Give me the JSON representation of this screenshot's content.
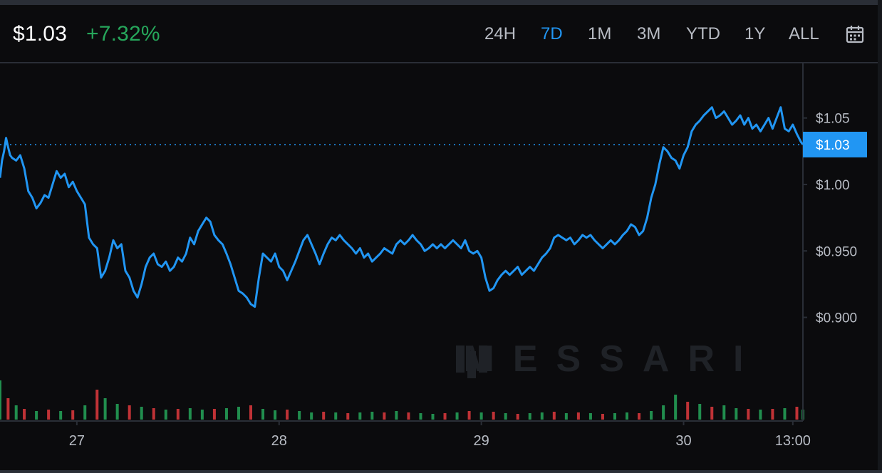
{
  "header": {
    "price": "$1.03",
    "change": "+7.32%",
    "ranges": [
      "24H",
      "7D",
      "1M",
      "3M",
      "YTD",
      "1Y",
      "ALL"
    ],
    "active_range": "7D",
    "calendar_icon": "calendar-icon"
  },
  "watermark": "MESSARI",
  "colors": {
    "background": "#0b0b0d",
    "line": "#2196f3",
    "positive": "#26a65b",
    "negative": "#e0393e",
    "text": "#b8bcc4",
    "grid": "#2a2e36"
  },
  "chart_data": {
    "type": "line",
    "x_tick_labels": [
      "27",
      "28",
      "29",
      "30",
      "13:00"
    ],
    "x_tick_positions_days": [
      1,
      2,
      3,
      4,
      4.54
    ],
    "y_tick_labels": [
      "$1.05",
      "$1.00",
      "$0.950",
      "$0.900"
    ],
    "y_tick_values": [
      1.05,
      1.0,
      0.95,
      0.9
    ],
    "ylim": [
      0.866,
      1.09
    ],
    "xlim_days": [
      0.62,
      4.59
    ],
    "current_price_label": "$1.03",
    "current_price": 1.03,
    "series": [
      {
        "points": [
          [
            0.62,
            1.005
          ],
          [
            0.63,
            1.018
          ],
          [
            0.64,
            1.025
          ],
          [
            0.65,
            1.035
          ],
          [
            0.66,
            1.028
          ],
          [
            0.67,
            1.022
          ],
          [
            0.68,
            1.02
          ],
          [
            0.7,
            1.018
          ],
          [
            0.72,
            1.022
          ],
          [
            0.74,
            1.012
          ],
          [
            0.76,
            0.995
          ],
          [
            0.78,
            0.99
          ],
          [
            0.8,
            0.982
          ],
          [
            0.82,
            0.986
          ],
          [
            0.84,
            0.992
          ],
          [
            0.86,
            0.99
          ],
          [
            0.88,
            1.0
          ],
          [
            0.9,
            1.01
          ],
          [
            0.92,
            1.005
          ],
          [
            0.94,
            1.008
          ],
          [
            0.96,
            0.998
          ],
          [
            0.98,
            1.002
          ],
          [
            1.0,
            0.995
          ],
          [
            1.02,
            0.99
          ],
          [
            1.04,
            0.985
          ],
          [
            1.06,
            0.96
          ],
          [
            1.08,
            0.955
          ],
          [
            1.1,
            0.952
          ],
          [
            1.12,
            0.93
          ],
          [
            1.14,
            0.935
          ],
          [
            1.16,
            0.945
          ],
          [
            1.18,
            0.958
          ],
          [
            1.2,
            0.952
          ],
          [
            1.22,
            0.955
          ],
          [
            1.24,
            0.935
          ],
          [
            1.26,
            0.93
          ],
          [
            1.28,
            0.92
          ],
          [
            1.3,
            0.915
          ],
          [
            1.32,
            0.925
          ],
          [
            1.34,
            0.938
          ],
          [
            1.36,
            0.945
          ],
          [
            1.38,
            0.948
          ],
          [
            1.4,
            0.94
          ],
          [
            1.42,
            0.938
          ],
          [
            1.44,
            0.942
          ],
          [
            1.46,
            0.935
          ],
          [
            1.48,
            0.938
          ],
          [
            1.5,
            0.945
          ],
          [
            1.52,
            0.942
          ],
          [
            1.54,
            0.948
          ],
          [
            1.56,
            0.96
          ],
          [
            1.58,
            0.955
          ],
          [
            1.6,
            0.965
          ],
          [
            1.62,
            0.97
          ],
          [
            1.64,
            0.975
          ],
          [
            1.66,
            0.972
          ],
          [
            1.68,
            0.962
          ],
          [
            1.7,
            0.958
          ],
          [
            1.72,
            0.955
          ],
          [
            1.74,
            0.948
          ],
          [
            1.76,
            0.94
          ],
          [
            1.78,
            0.93
          ],
          [
            1.8,
            0.92
          ],
          [
            1.82,
            0.918
          ],
          [
            1.84,
            0.915
          ],
          [
            1.86,
            0.91
          ],
          [
            1.88,
            0.908
          ],
          [
            1.9,
            0.93
          ],
          [
            1.92,
            0.948
          ],
          [
            1.94,
            0.945
          ],
          [
            1.96,
            0.942
          ],
          [
            1.98,
            0.948
          ],
          [
            2.0,
            0.938
          ],
          [
            2.02,
            0.935
          ],
          [
            2.04,
            0.928
          ],
          [
            2.06,
            0.935
          ],
          [
            2.08,
            0.942
          ],
          [
            2.1,
            0.95
          ],
          [
            2.12,
            0.958
          ],
          [
            2.14,
            0.962
          ],
          [
            2.16,
            0.955
          ],
          [
            2.18,
            0.948
          ],
          [
            2.2,
            0.94
          ],
          [
            2.22,
            0.948
          ],
          [
            2.24,
            0.955
          ],
          [
            2.26,
            0.96
          ],
          [
            2.28,
            0.958
          ],
          [
            2.3,
            0.962
          ],
          [
            2.32,
            0.958
          ],
          [
            2.34,
            0.955
          ],
          [
            2.36,
            0.952
          ],
          [
            2.38,
            0.948
          ],
          [
            2.4,
            0.952
          ],
          [
            2.42,
            0.945
          ],
          [
            2.44,
            0.948
          ],
          [
            2.46,
            0.942
          ],
          [
            2.48,
            0.945
          ],
          [
            2.5,
            0.948
          ],
          [
            2.52,
            0.952
          ],
          [
            2.54,
            0.95
          ],
          [
            2.56,
            0.948
          ],
          [
            2.58,
            0.955
          ],
          [
            2.6,
            0.958
          ],
          [
            2.62,
            0.955
          ],
          [
            2.64,
            0.958
          ],
          [
            2.66,
            0.962
          ],
          [
            2.68,
            0.958
          ],
          [
            2.7,
            0.955
          ],
          [
            2.72,
            0.95
          ],
          [
            2.74,
            0.952
          ],
          [
            2.76,
            0.955
          ],
          [
            2.78,
            0.952
          ],
          [
            2.8,
            0.955
          ],
          [
            2.82,
            0.952
          ],
          [
            2.84,
            0.955
          ],
          [
            2.86,
            0.958
          ],
          [
            2.88,
            0.955
          ],
          [
            2.9,
            0.952
          ],
          [
            2.92,
            0.958
          ],
          [
            2.94,
            0.95
          ],
          [
            2.96,
            0.948
          ],
          [
            2.98,
            0.95
          ],
          [
            3.0,
            0.945
          ],
          [
            3.02,
            0.93
          ],
          [
            3.04,
            0.92
          ],
          [
            3.06,
            0.922
          ],
          [
            3.08,
            0.928
          ],
          [
            3.1,
            0.932
          ],
          [
            3.12,
            0.935
          ],
          [
            3.14,
            0.932
          ],
          [
            3.16,
            0.935
          ],
          [
            3.18,
            0.938
          ],
          [
            3.2,
            0.932
          ],
          [
            3.22,
            0.935
          ],
          [
            3.24,
            0.938
          ],
          [
            3.26,
            0.935
          ],
          [
            3.28,
            0.94
          ],
          [
            3.3,
            0.945
          ],
          [
            3.32,
            0.948
          ],
          [
            3.34,
            0.952
          ],
          [
            3.36,
            0.96
          ],
          [
            3.38,
            0.962
          ],
          [
            3.4,
            0.96
          ],
          [
            3.42,
            0.958
          ],
          [
            3.44,
            0.96
          ],
          [
            3.46,
            0.955
          ],
          [
            3.48,
            0.958
          ],
          [
            3.5,
            0.962
          ],
          [
            3.52,
            0.96
          ],
          [
            3.54,
            0.962
          ],
          [
            3.56,
            0.958
          ],
          [
            3.58,
            0.955
          ],
          [
            3.6,
            0.952
          ],
          [
            3.62,
            0.955
          ],
          [
            3.64,
            0.958
          ],
          [
            3.66,
            0.955
          ],
          [
            3.68,
            0.958
          ],
          [
            3.7,
            0.962
          ],
          [
            3.72,
            0.965
          ],
          [
            3.74,
            0.97
          ],
          [
            3.76,
            0.968
          ],
          [
            3.78,
            0.962
          ],
          [
            3.8,
            0.965
          ],
          [
            3.82,
            0.975
          ],
          [
            3.84,
            0.99
          ],
          [
            3.86,
            1.0
          ],
          [
            3.88,
            1.015
          ],
          [
            3.9,
            1.028
          ],
          [
            3.92,
            1.025
          ],
          [
            3.94,
            1.02
          ],
          [
            3.96,
            1.018
          ],
          [
            3.98,
            1.012
          ],
          [
            4.0,
            1.022
          ],
          [
            4.02,
            1.028
          ],
          [
            4.04,
            1.04
          ],
          [
            4.06,
            1.045
          ],
          [
            4.08,
            1.048
          ],
          [
            4.1,
            1.052
          ],
          [
            4.12,
            1.055
          ],
          [
            4.14,
            1.058
          ],
          [
            4.16,
            1.05
          ],
          [
            4.18,
            1.052
          ],
          [
            4.2,
            1.055
          ],
          [
            4.22,
            1.05
          ],
          [
            4.24,
            1.045
          ],
          [
            4.26,
            1.048
          ],
          [
            4.28,
            1.052
          ],
          [
            4.3,
            1.045
          ],
          [
            4.32,
            1.05
          ],
          [
            4.34,
            1.042
          ],
          [
            4.36,
            1.045
          ],
          [
            4.38,
            1.04
          ],
          [
            4.4,
            1.045
          ],
          [
            4.42,
            1.05
          ],
          [
            4.44,
            1.042
          ],
          [
            4.46,
            1.05
          ],
          [
            4.48,
            1.058
          ],
          [
            4.5,
            1.042
          ],
          [
            4.52,
            1.04
          ],
          [
            4.54,
            1.045
          ],
          [
            4.56,
            1.038
          ],
          [
            4.58,
            1.032
          ],
          [
            4.59,
            1.03
          ]
        ]
      }
    ],
    "volume": {
      "positive_color": "#26a65b",
      "negative_color": "#e0393e",
      "bars": [
        [
          0.62,
          0.55,
          1
        ],
        [
          0.66,
          0.3,
          -1
        ],
        [
          0.7,
          0.2,
          1
        ],
        [
          0.74,
          0.15,
          -1
        ],
        [
          0.8,
          0.12,
          1
        ],
        [
          0.86,
          0.14,
          -1
        ],
        [
          0.92,
          0.12,
          1
        ],
        [
          0.98,
          0.13,
          -1
        ],
        [
          1.04,
          0.2,
          1
        ],
        [
          1.1,
          0.42,
          -1
        ],
        [
          1.14,
          0.3,
          1
        ],
        [
          1.2,
          0.22,
          1
        ],
        [
          1.26,
          0.2,
          -1
        ],
        [
          1.32,
          0.18,
          1
        ],
        [
          1.38,
          0.16,
          -1
        ],
        [
          1.44,
          0.14,
          1
        ],
        [
          1.5,
          0.15,
          -1
        ],
        [
          1.56,
          0.16,
          1
        ],
        [
          1.62,
          0.14,
          1
        ],
        [
          1.68,
          0.15,
          -1
        ],
        [
          1.74,
          0.16,
          1
        ],
        [
          1.8,
          0.18,
          1
        ],
        [
          1.86,
          0.2,
          -1
        ],
        [
          1.92,
          0.15,
          1
        ],
        [
          1.98,
          0.13,
          1
        ],
        [
          2.04,
          0.14,
          -1
        ],
        [
          2.1,
          0.12,
          1
        ],
        [
          2.16,
          0.1,
          1
        ],
        [
          2.22,
          0.11,
          -1
        ],
        [
          2.28,
          0.1,
          1
        ],
        [
          2.34,
          0.09,
          -1
        ],
        [
          2.4,
          0.1,
          1
        ],
        [
          2.46,
          0.11,
          1
        ],
        [
          2.52,
          0.1,
          -1
        ],
        [
          2.58,
          0.12,
          1
        ],
        [
          2.64,
          0.1,
          -1
        ],
        [
          2.7,
          0.09,
          1
        ],
        [
          2.76,
          0.08,
          1
        ],
        [
          2.82,
          0.09,
          -1
        ],
        [
          2.88,
          0.1,
          1
        ],
        [
          2.94,
          0.12,
          -1
        ],
        [
          3.0,
          0.1,
          1
        ],
        [
          3.06,
          0.11,
          -1
        ],
        [
          3.12,
          0.09,
          1
        ],
        [
          3.18,
          0.08,
          -1
        ],
        [
          3.24,
          0.09,
          1
        ],
        [
          3.3,
          0.1,
          1
        ],
        [
          3.36,
          0.11,
          -1
        ],
        [
          3.42,
          0.09,
          1
        ],
        [
          3.48,
          0.1,
          -1
        ],
        [
          3.54,
          0.09,
          1
        ],
        [
          3.6,
          0.08,
          -1
        ],
        [
          3.66,
          0.09,
          1
        ],
        [
          3.72,
          0.1,
          1
        ],
        [
          3.78,
          0.09,
          -1
        ],
        [
          3.84,
          0.12,
          1
        ],
        [
          3.9,
          0.2,
          1
        ],
        [
          3.96,
          0.35,
          1
        ],
        [
          4.02,
          0.25,
          -1
        ],
        [
          4.08,
          0.22,
          1
        ],
        [
          4.14,
          0.18,
          -1
        ],
        [
          4.2,
          0.2,
          1
        ],
        [
          4.26,
          0.16,
          1
        ],
        [
          4.32,
          0.15,
          -1
        ],
        [
          4.38,
          0.14,
          1
        ],
        [
          4.44,
          0.15,
          -1
        ],
        [
          4.5,
          0.16,
          1
        ],
        [
          4.56,
          0.18,
          -1
        ],
        [
          4.59,
          0.14,
          1
        ]
      ]
    }
  }
}
